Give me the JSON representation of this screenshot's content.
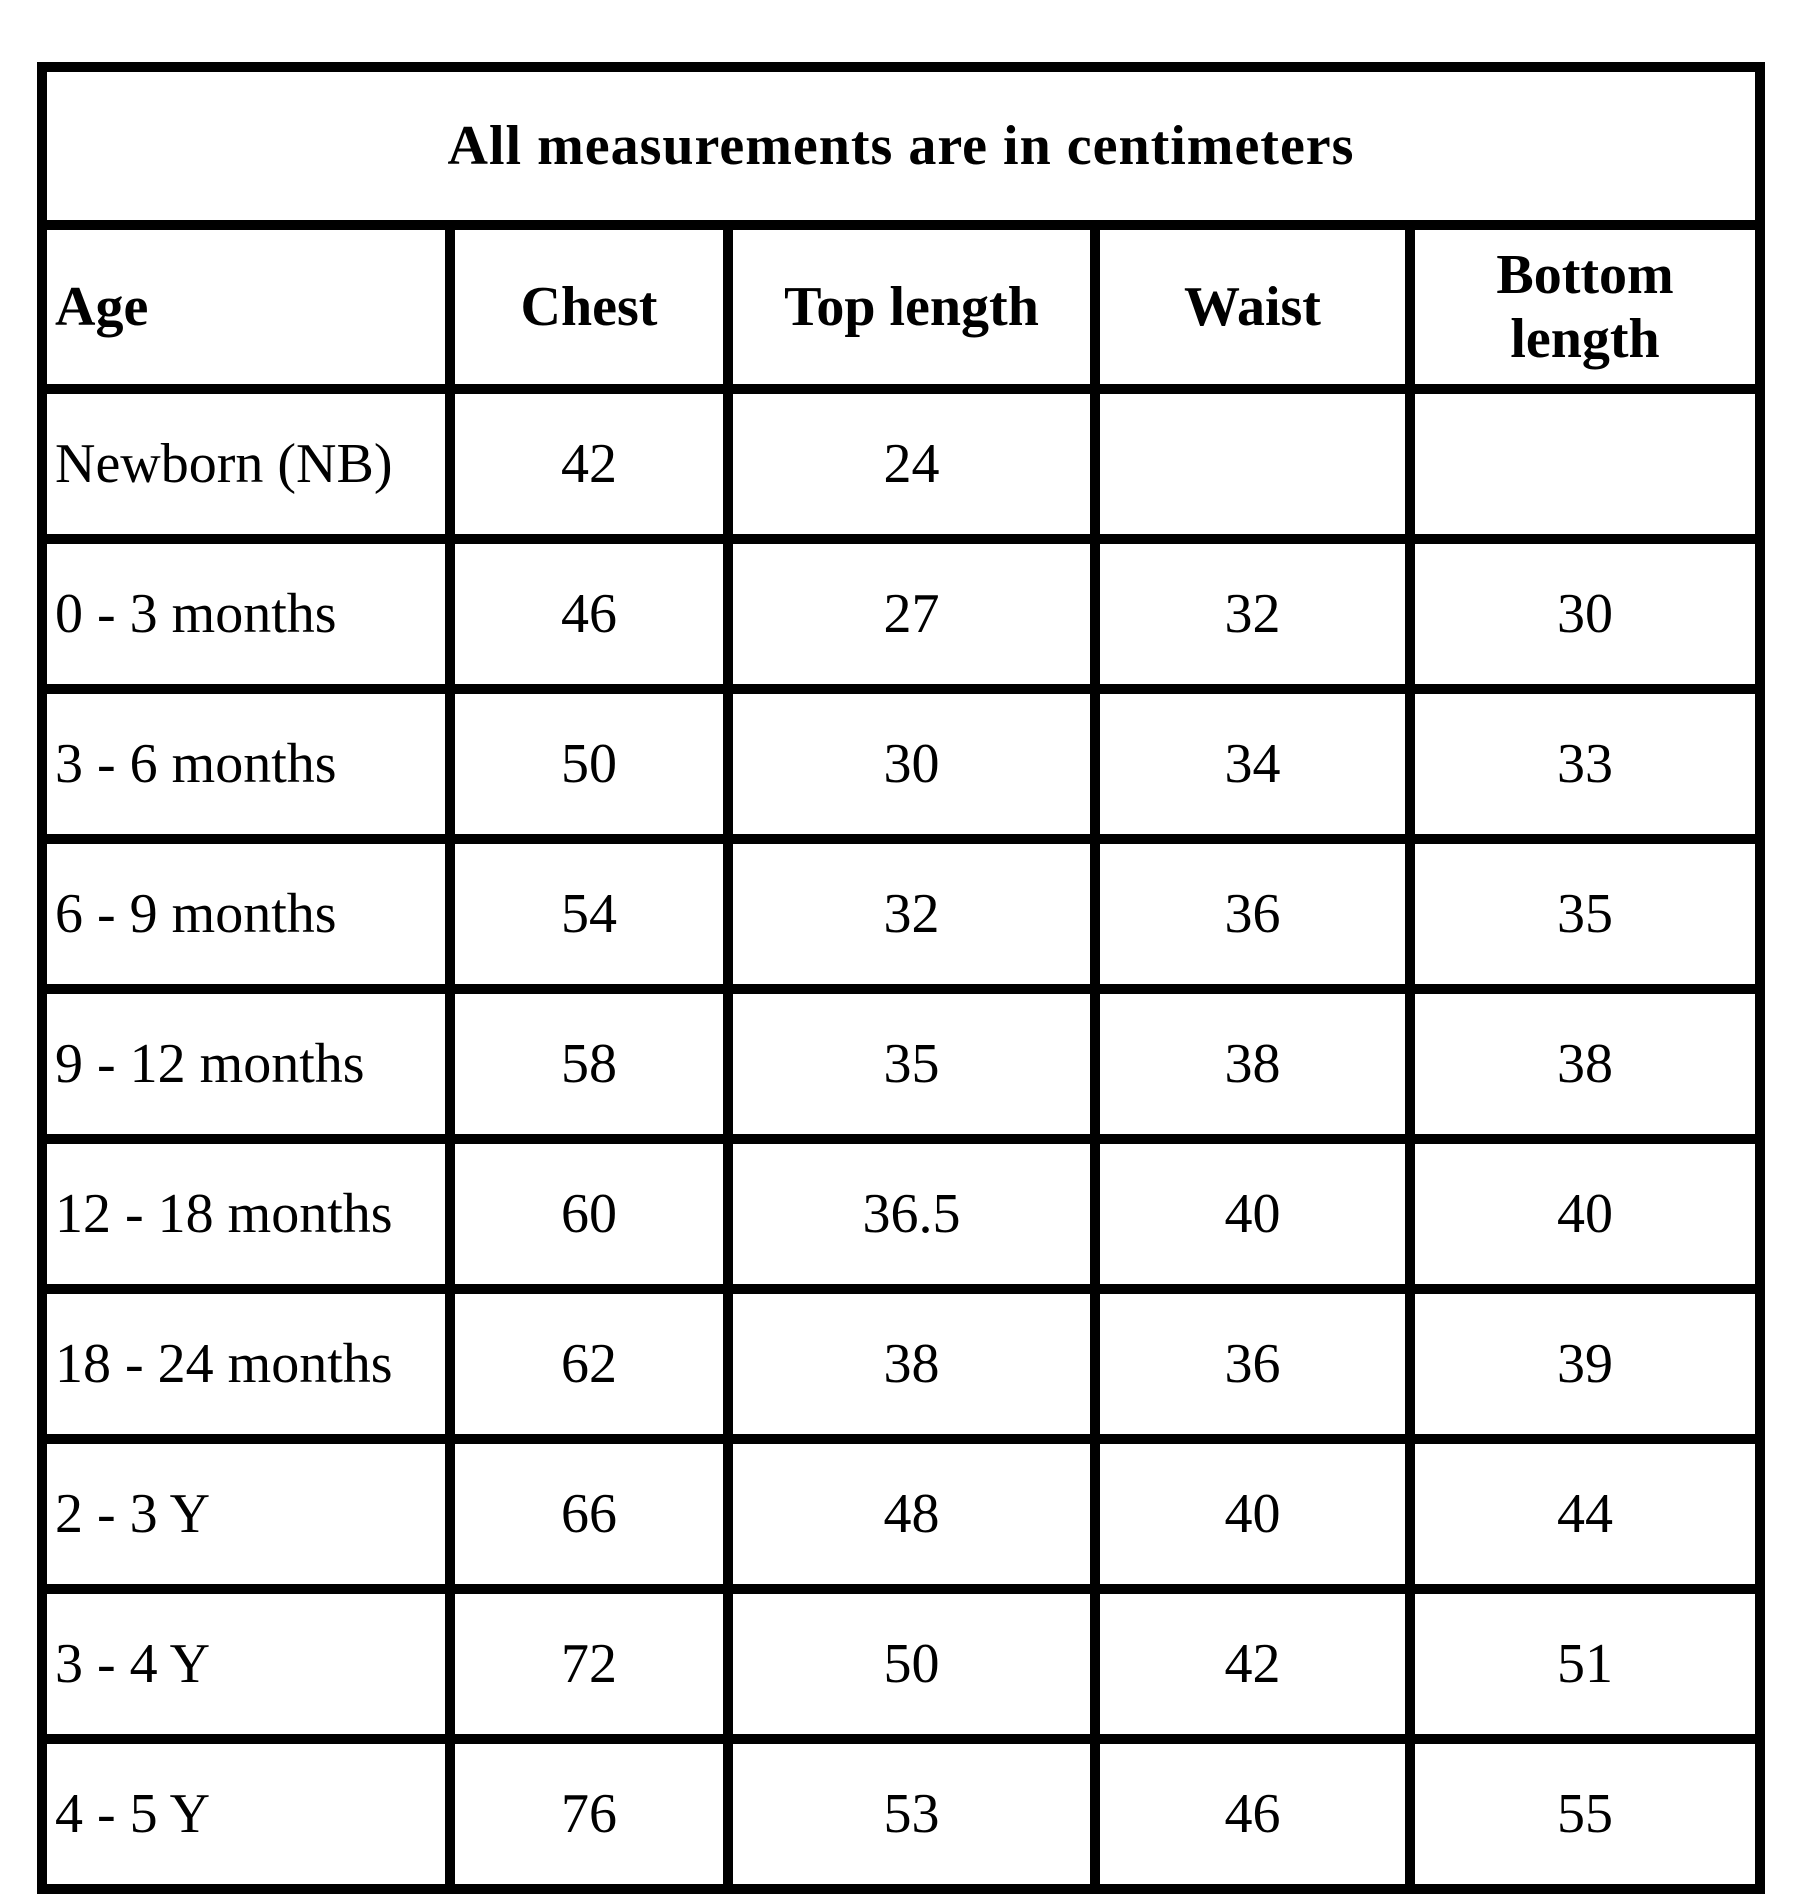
{
  "page": {
    "background": "#ffffff",
    "border_color": "#000000",
    "text_color": "#000000"
  },
  "table": {
    "title": "All measurements are in centimeters",
    "columns": [
      "Age",
      "Chest",
      "Top length",
      "Waist",
      "Bottom length"
    ],
    "rows": [
      [
        "Newborn (NB)",
        "42",
        "24",
        "",
        ""
      ],
      [
        "0 - 3 months",
        "46",
        "27",
        "32",
        "30"
      ],
      [
        "3 - 6 months",
        "50",
        "30",
        "34",
        "33"
      ],
      [
        "6 - 9 months",
        "54",
        "32",
        "36",
        "35"
      ],
      [
        "9 - 12 months",
        "58",
        "35",
        "38",
        "38"
      ],
      [
        "12 - 18 months",
        "60",
        "36.5",
        "40",
        "40"
      ],
      [
        "18 - 24 months",
        "62",
        "38",
        "36",
        "39"
      ],
      [
        "2 - 3 Y",
        "66",
        "48",
        "40",
        "44"
      ],
      [
        "3 - 4 Y",
        "72",
        "50",
        "42",
        "51"
      ],
      [
        "4 - 5 Y",
        "76",
        "53",
        "46",
        "55"
      ]
    ]
  },
  "chart_data": {
    "type": "table",
    "title": "All measurements are in centimeters",
    "columns": [
      "Age",
      "Chest",
      "Top length",
      "Waist",
      "Bottom length"
    ],
    "rows": [
      {
        "age": "Newborn (NB)",
        "chest": 42,
        "top_length": 24,
        "waist": null,
        "bottom_length": null
      },
      {
        "age": "0 - 3 months",
        "chest": 46,
        "top_length": 27,
        "waist": 32,
        "bottom_length": 30
      },
      {
        "age": "3 - 6 months",
        "chest": 50,
        "top_length": 30,
        "waist": 34,
        "bottom_length": 33
      },
      {
        "age": "6 - 9 months",
        "chest": 54,
        "top_length": 32,
        "waist": 36,
        "bottom_length": 35
      },
      {
        "age": "9 - 12 months",
        "chest": 58,
        "top_length": 35,
        "waist": 38,
        "bottom_length": 38
      },
      {
        "age": "12 - 18 months",
        "chest": 60,
        "top_length": 36.5,
        "waist": 40,
        "bottom_length": 40
      },
      {
        "age": "18 - 24 months",
        "chest": 62,
        "top_length": 38,
        "waist": 36,
        "bottom_length": 39
      },
      {
        "age": "2 - 3 Y",
        "chest": 66,
        "top_length": 48,
        "waist": 40,
        "bottom_length": 44
      },
      {
        "age": "3 - 4 Y",
        "chest": 72,
        "top_length": 50,
        "waist": 42,
        "bottom_length": 51
      },
      {
        "age": "4 - 5 Y",
        "chest": 76,
        "top_length": 53,
        "waist": 46,
        "bottom_length": 55
      }
    ],
    "units": "centimeters"
  }
}
